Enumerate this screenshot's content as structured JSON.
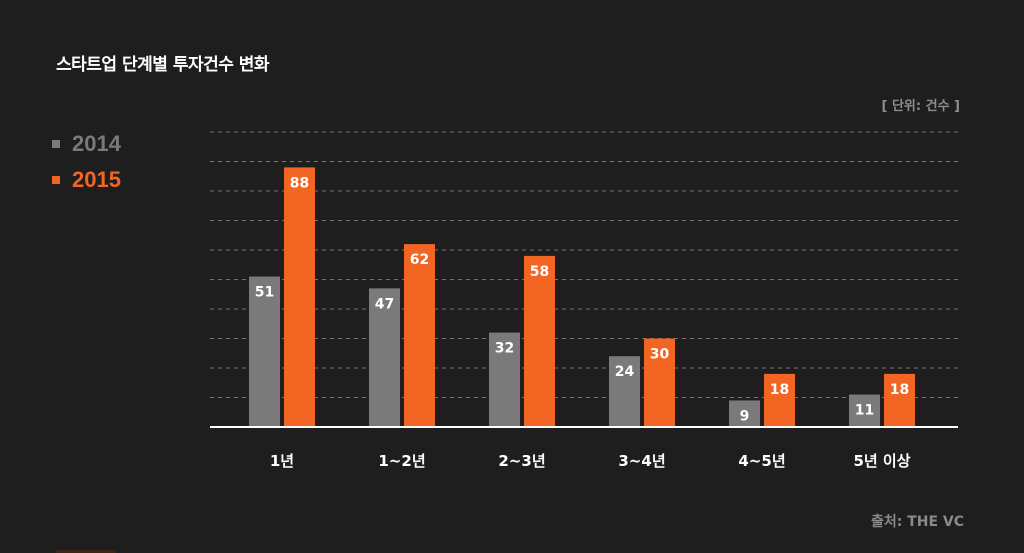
{
  "title": "스타트업 단계별  투자건수 변화",
  "unit_label": "[ 단위: 건수 ]",
  "source": "출처: THE VC",
  "colors": {
    "background": "#1f1e1e",
    "series_2014": "#7a7a7a",
    "series_2015": "#f26522",
    "grid": "#8a8a8a",
    "axis": "#ffffff"
  },
  "legend": [
    {
      "label": "2014",
      "color": "#7a7a7a"
    },
    {
      "label": "2015",
      "color": "#f26522"
    }
  ],
  "chart_data": {
    "type": "bar",
    "title": "스타트업 단계별  투자건수 변화",
    "categories": [
      "1년",
      "1~2년",
      "2~3년",
      "3~4년",
      "4~5년",
      "5년 이상"
    ],
    "series": [
      {
        "name": "2014",
        "values": [
          51,
          47,
          32,
          24,
          9,
          11
        ]
      },
      {
        "name": "2015",
        "values": [
          88,
          62,
          58,
          30,
          18,
          18
        ]
      }
    ],
    "ylim": [
      0,
      100
    ],
    "grid": true,
    "legend_position": "left"
  }
}
